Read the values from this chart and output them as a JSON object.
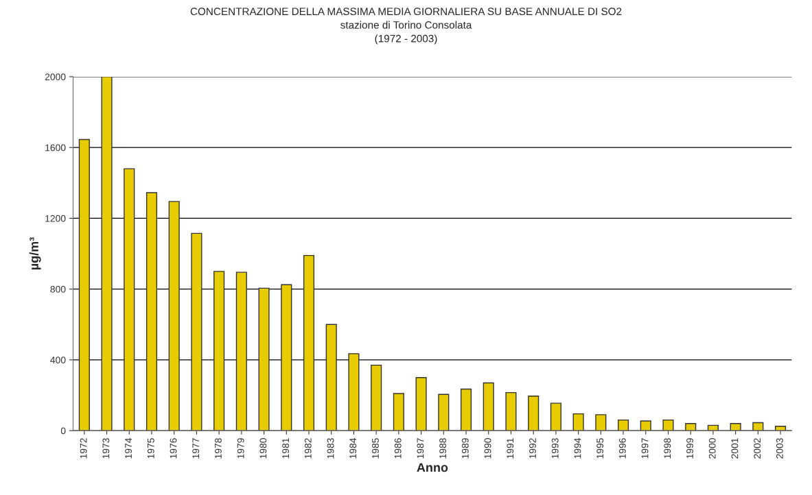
{
  "chart_data": {
    "type": "bar",
    "title": "CONCENTRAZIONE DELLA MASSIMA MEDIA GIORNALIERA SU BASE ANNUALE DI SO2\nstazione di Torino Consolata\n(1972 - 2003)",
    "xlabel": "Anno",
    "ylabel": "µg/m³",
    "categories": [
      "1972",
      "1973",
      "1974",
      "1975",
      "1976",
      "1977",
      "1978",
      "1979",
      "1980",
      "1981",
      "1982",
      "1983",
      "1984",
      "1985",
      "1986",
      "1987",
      "1988",
      "1989",
      "1990",
      "1991",
      "1992",
      "1993",
      "1994",
      "1995",
      "1996",
      "1997",
      "1998",
      "1999",
      "2000",
      "2001",
      "2002",
      "2003"
    ],
    "values": [
      1645,
      2000,
      1480,
      1345,
      1295,
      1115,
      900,
      895,
      805,
      825,
      990,
      600,
      435,
      370,
      210,
      300,
      205,
      235,
      270,
      215,
      195,
      155,
      95,
      90,
      60,
      55,
      60,
      40,
      30,
      40,
      45,
      25
    ],
    "color": "#e6cc00",
    "ylim": [
      0,
      2000
    ],
    "yticks": [
      0,
      400,
      800,
      1200,
      1600,
      2000
    ],
    "grid": "y",
    "legend": false
  }
}
